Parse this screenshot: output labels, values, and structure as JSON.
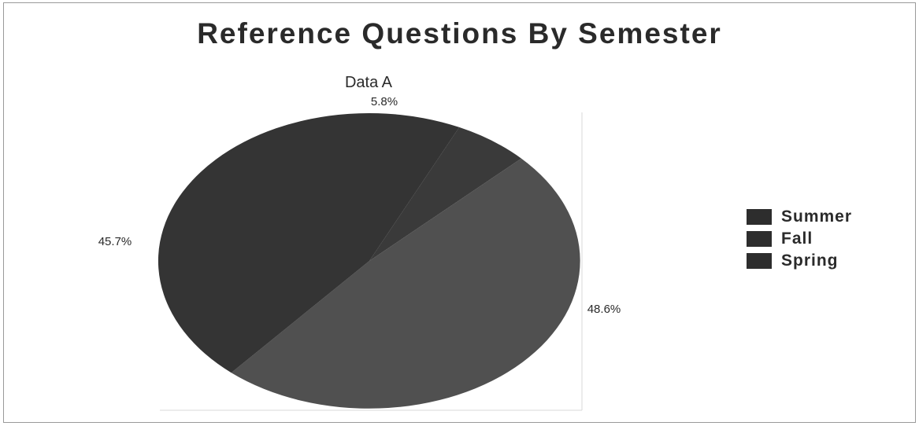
{
  "chart_data": {
    "type": "pie",
    "title": "Reference Questions By Semester",
    "subtitle": "Data A",
    "categories": [
      "Summer",
      "Fall",
      "Spring"
    ],
    "values": [
      5.8,
      48.6,
      45.7
    ],
    "data_labels": [
      "5.8%",
      "48.6%",
      "45.7%"
    ],
    "legend": {
      "placement": "right",
      "entries": [
        "Summer",
        "Fall",
        "Spring"
      ]
    },
    "colors": {
      "Summer": "#3a3a3a",
      "Fall": "#505050",
      "Spring": "#343434",
      "legend_swatch": "#2d2d2d"
    }
  }
}
